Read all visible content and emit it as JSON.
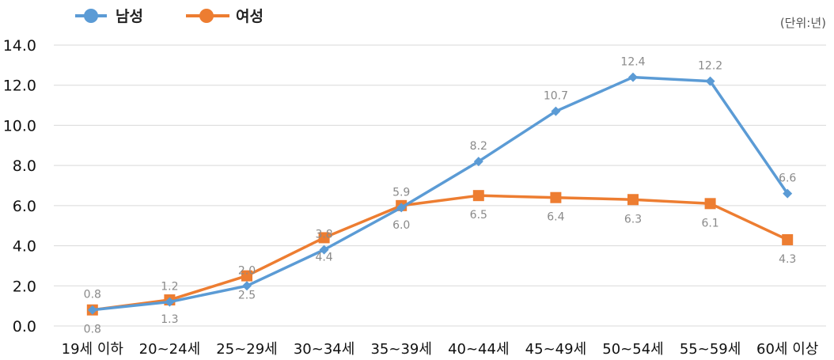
{
  "chart_data": {
    "type": "line",
    "unit_label": "(단위:년)",
    "categories": [
      "19세 이하",
      "20~24세",
      "25~29세",
      "30~34세",
      "35~39세",
      "40~44세",
      "45~49세",
      "50~54세",
      "55~59세",
      "60세 이상"
    ],
    "ylim": [
      0,
      14
    ],
    "yticks": [
      "0.0",
      "2.0",
      "4.0",
      "6.0",
      "8.0",
      "10.0",
      "12.0",
      "14.0"
    ],
    "grid": true,
    "legend_position": "top-left",
    "series": [
      {
        "name": "남성",
        "color": "#5b9bd5",
        "marker": "diamond",
        "values": [
          0.8,
          1.2,
          2.0,
          3.8,
          5.9,
          8.2,
          10.7,
          12.4,
          12.2,
          6.6
        ],
        "labels": [
          "0.8",
          "1.2",
          "2.0",
          "3.8",
          "5.9",
          "8.2",
          "10.7",
          "12.4",
          "12.2",
          "6.6"
        ]
      },
      {
        "name": "여성",
        "color": "#ed7d31",
        "marker": "square",
        "values": [
          0.8,
          1.3,
          2.5,
          4.4,
          6.0,
          6.5,
          6.4,
          6.3,
          6.1,
          4.3
        ],
        "labels": [
          "0.8",
          "1.3",
          "2.5",
          "4.4",
          "6.0",
          "6.5",
          "6.4",
          "6.3",
          "6.1",
          "4.3"
        ]
      }
    ]
  }
}
